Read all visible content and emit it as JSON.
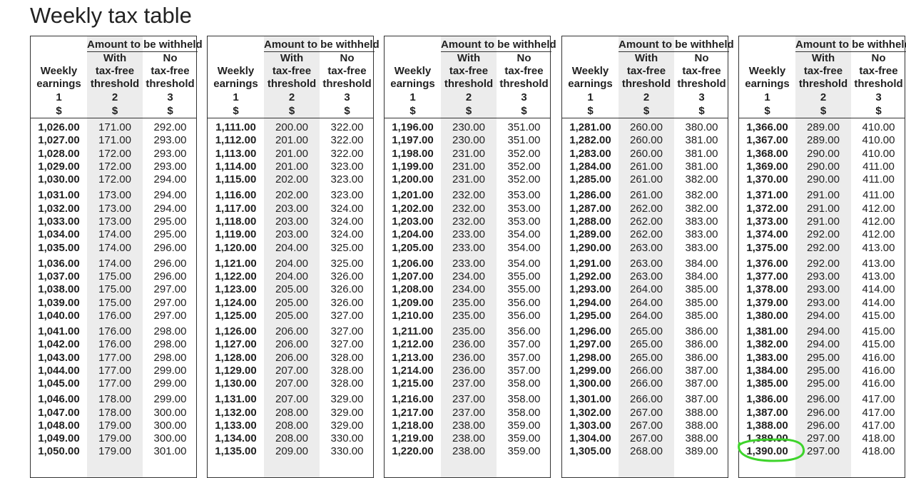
{
  "title": "Weekly tax table",
  "header": {
    "group": "Amount to be withheld",
    "col1": [
      "Weekly",
      "earnings"
    ],
    "col2": [
      "With",
      "tax-free",
      "threshold"
    ],
    "col3": [
      "No",
      "tax-free",
      "threshold"
    ],
    "numbers": [
      "1",
      "2",
      "3"
    ],
    "unit": "$"
  },
  "panels": [
    {
      "rows": [
        [
          "1,026.00",
          "171.00",
          "292.00"
        ],
        [
          "1,027.00",
          "171.00",
          "293.00"
        ],
        [
          "1,028.00",
          "172.00",
          "293.00"
        ],
        [
          "1,029.00",
          "172.00",
          "293.00"
        ],
        [
          "1,030.00",
          "172.00",
          "294.00"
        ],
        [
          "1,031.00",
          "173.00",
          "294.00"
        ],
        [
          "1,032.00",
          "173.00",
          "294.00"
        ],
        [
          "1,033.00",
          "173.00",
          "295.00"
        ],
        [
          "1,034.00",
          "174.00",
          "295.00"
        ],
        [
          "1,035.00",
          "174.00",
          "296.00"
        ],
        [
          "1,036.00",
          "174.00",
          "296.00"
        ],
        [
          "1,037.00",
          "175.00",
          "296.00"
        ],
        [
          "1,038.00",
          "175.00",
          "297.00"
        ],
        [
          "1,039.00",
          "175.00",
          "297.00"
        ],
        [
          "1,040.00",
          "176.00",
          "297.00"
        ],
        [
          "1,041.00",
          "176.00",
          "298.00"
        ],
        [
          "1,042.00",
          "176.00",
          "298.00"
        ],
        [
          "1,043.00",
          "177.00",
          "298.00"
        ],
        [
          "1,044.00",
          "177.00",
          "299.00"
        ],
        [
          "1,045.00",
          "177.00",
          "299.00"
        ],
        [
          "1,046.00",
          "178.00",
          "299.00"
        ],
        [
          "1,047.00",
          "178.00",
          "300.00"
        ],
        [
          "1,048.00",
          "179.00",
          "300.00"
        ],
        [
          "1,049.00",
          "179.00",
          "300.00"
        ],
        [
          "1,050.00",
          "179.00",
          "301.00"
        ]
      ]
    },
    {
      "rows": [
        [
          "1,111.00",
          "200.00",
          "322.00"
        ],
        [
          "1,112.00",
          "201.00",
          "322.00"
        ],
        [
          "1,113.00",
          "201.00",
          "322.00"
        ],
        [
          "1,114.00",
          "201.00",
          "323.00"
        ],
        [
          "1,115.00",
          "202.00",
          "323.00"
        ],
        [
          "1,116.00",
          "202.00",
          "323.00"
        ],
        [
          "1,117.00",
          "203.00",
          "324.00"
        ],
        [
          "1,118.00",
          "203.00",
          "324.00"
        ],
        [
          "1,119.00",
          "203.00",
          "324.00"
        ],
        [
          "1,120.00",
          "204.00",
          "325.00"
        ],
        [
          "1,121.00",
          "204.00",
          "325.00"
        ],
        [
          "1,122.00",
          "204.00",
          "326.00"
        ],
        [
          "1,123.00",
          "205.00",
          "326.00"
        ],
        [
          "1,124.00",
          "205.00",
          "326.00"
        ],
        [
          "1,125.00",
          "205.00",
          "327.00"
        ],
        [
          "1,126.00",
          "206.00",
          "327.00"
        ],
        [
          "1,127.00",
          "206.00",
          "327.00"
        ],
        [
          "1,128.00",
          "206.00",
          "328.00"
        ],
        [
          "1,129.00",
          "207.00",
          "328.00"
        ],
        [
          "1,130.00",
          "207.00",
          "328.00"
        ],
        [
          "1,131.00",
          "207.00",
          "329.00"
        ],
        [
          "1,132.00",
          "208.00",
          "329.00"
        ],
        [
          "1,133.00",
          "208.00",
          "329.00"
        ],
        [
          "1,134.00",
          "208.00",
          "330.00"
        ],
        [
          "1,135.00",
          "209.00",
          "330.00"
        ]
      ]
    },
    {
      "rows": [
        [
          "1,196.00",
          "230.00",
          "351.00"
        ],
        [
          "1,197.00",
          "230.00",
          "351.00"
        ],
        [
          "1,198.00",
          "231.00",
          "352.00"
        ],
        [
          "1,199.00",
          "231.00",
          "352.00"
        ],
        [
          "1,200.00",
          "231.00",
          "352.00"
        ],
        [
          "1,201.00",
          "232.00",
          "353.00"
        ],
        [
          "1,202.00",
          "232.00",
          "353.00"
        ],
        [
          "1,203.00",
          "232.00",
          "353.00"
        ],
        [
          "1,204.00",
          "233.00",
          "354.00"
        ],
        [
          "1,205.00",
          "233.00",
          "354.00"
        ],
        [
          "1,206.00",
          "233.00",
          "354.00"
        ],
        [
          "1,207.00",
          "234.00",
          "355.00"
        ],
        [
          "1,208.00",
          "234.00",
          "355.00"
        ],
        [
          "1,209.00",
          "235.00",
          "356.00"
        ],
        [
          "1,210.00",
          "235.00",
          "356.00"
        ],
        [
          "1,211.00",
          "235.00",
          "356.00"
        ],
        [
          "1,212.00",
          "236.00",
          "357.00"
        ],
        [
          "1,213.00",
          "236.00",
          "357.00"
        ],
        [
          "1,214.00",
          "236.00",
          "357.00"
        ],
        [
          "1,215.00",
          "237.00",
          "358.00"
        ],
        [
          "1,216.00",
          "237.00",
          "358.00"
        ],
        [
          "1,217.00",
          "237.00",
          "358.00"
        ],
        [
          "1,218.00",
          "238.00",
          "359.00"
        ],
        [
          "1,219.00",
          "238.00",
          "359.00"
        ],
        [
          "1,220.00",
          "238.00",
          "359.00"
        ]
      ]
    },
    {
      "rows": [
        [
          "1,281.00",
          "260.00",
          "380.00"
        ],
        [
          "1,282.00",
          "260.00",
          "381.00"
        ],
        [
          "1,283.00",
          "260.00",
          "381.00"
        ],
        [
          "1,284.00",
          "261.00",
          "381.00"
        ],
        [
          "1,285.00",
          "261.00",
          "382.00"
        ],
        [
          "1,286.00",
          "261.00",
          "382.00"
        ],
        [
          "1,287.00",
          "262.00",
          "382.00"
        ],
        [
          "1,288.00",
          "262.00",
          "383.00"
        ],
        [
          "1,289.00",
          "262.00",
          "383.00"
        ],
        [
          "1,290.00",
          "263.00",
          "383.00"
        ],
        [
          "1,291.00",
          "263.00",
          "384.00"
        ],
        [
          "1,292.00",
          "263.00",
          "384.00"
        ],
        [
          "1,293.00",
          "264.00",
          "385.00"
        ],
        [
          "1,294.00",
          "264.00",
          "385.00"
        ],
        [
          "1,295.00",
          "264.00",
          "385.00"
        ],
        [
          "1,296.00",
          "265.00",
          "386.00"
        ],
        [
          "1,297.00",
          "265.00",
          "386.00"
        ],
        [
          "1,298.00",
          "265.00",
          "386.00"
        ],
        [
          "1,299.00",
          "266.00",
          "387.00"
        ],
        [
          "1,300.00",
          "266.00",
          "387.00"
        ],
        [
          "1,301.00",
          "266.00",
          "387.00"
        ],
        [
          "1,302.00",
          "267.00",
          "388.00"
        ],
        [
          "1,303.00",
          "267.00",
          "388.00"
        ],
        [
          "1,304.00",
          "267.00",
          "388.00"
        ],
        [
          "1,305.00",
          "268.00",
          "389.00"
        ]
      ]
    },
    {
      "rows": [
        [
          "1,366.00",
          "289.00",
          "410.00"
        ],
        [
          "1,367.00",
          "289.00",
          "410.00"
        ],
        [
          "1,368.00",
          "290.00",
          "410.00"
        ],
        [
          "1,369.00",
          "290.00",
          "411.00"
        ],
        [
          "1,370.00",
          "290.00",
          "411.00"
        ],
        [
          "1,371.00",
          "291.00",
          "411.00"
        ],
        [
          "1,372.00",
          "291.00",
          "412.00"
        ],
        [
          "1,373.00",
          "291.00",
          "412.00"
        ],
        [
          "1,374.00",
          "292.00",
          "412.00"
        ],
        [
          "1,375.00",
          "292.00",
          "413.00"
        ],
        [
          "1,376.00",
          "292.00",
          "413.00"
        ],
        [
          "1,377.00",
          "293.00",
          "413.00"
        ],
        [
          "1,378.00",
          "293.00",
          "414.00"
        ],
        [
          "1,379.00",
          "293.00",
          "414.00"
        ],
        [
          "1,380.00",
          "294.00",
          "415.00"
        ],
        [
          "1,381.00",
          "294.00",
          "415.00"
        ],
        [
          "1,382.00",
          "294.00",
          "415.00"
        ],
        [
          "1,383.00",
          "295.00",
          "416.00"
        ],
        [
          "1,384.00",
          "295.00",
          "416.00"
        ],
        [
          "1,385.00",
          "295.00",
          "416.00"
        ],
        [
          "1,386.00",
          "296.00",
          "417.00"
        ],
        [
          "1,387.00",
          "296.00",
          "417.00"
        ],
        [
          "1,388.00",
          "296.00",
          "417.00"
        ],
        [
          "1,389.00",
          "297.00",
          "418.00"
        ],
        [
          "1,390.00",
          "297.00",
          "418.00"
        ]
      ]
    }
  ]
}
